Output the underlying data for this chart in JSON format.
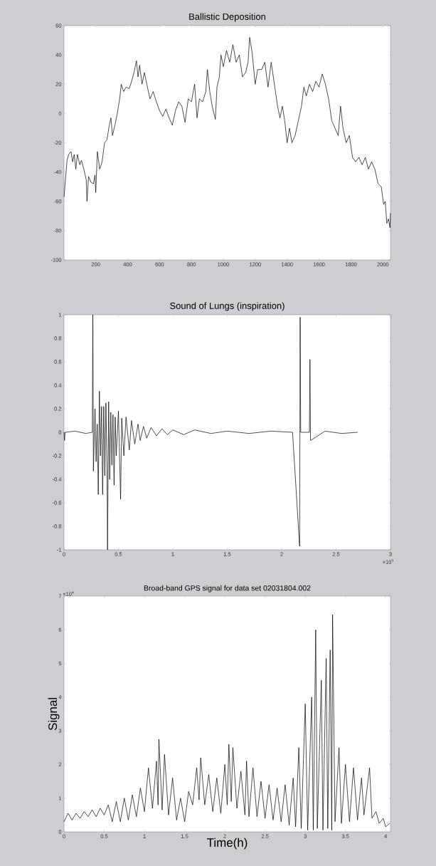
{
  "chart_data": [
    {
      "type": "line",
      "title": "Ballistic Deposition",
      "x": [
        1,
        10,
        20,
        30,
        45,
        55,
        65,
        75,
        85,
        100,
        110,
        125,
        140,
        145,
        155,
        170,
        185,
        195,
        200,
        210,
        225,
        240,
        255,
        270,
        285,
        295,
        305,
        320,
        335,
        350,
        360,
        375,
        390,
        410,
        425,
        440,
        455,
        465,
        475,
        490,
        505,
        520,
        540,
        560,
        580,
        600,
        620,
        640,
        660,
        680,
        700,
        720,
        740,
        760,
        780,
        800,
        820,
        835,
        850,
        870,
        890,
        900,
        915,
        930,
        950,
        960,
        975,
        985,
        1000,
        1020,
        1040,
        1060,
        1080,
        1100,
        1120,
        1140,
        1155,
        1165,
        1180,
        1200,
        1215,
        1240,
        1260,
        1280,
        1300,
        1320,
        1340,
        1355,
        1370,
        1385,
        1400,
        1415,
        1430,
        1450,
        1470,
        1490,
        1505,
        1520,
        1540,
        1560,
        1580,
        1600,
        1620,
        1640,
        1660,
        1680,
        1700,
        1720,
        1735,
        1750,
        1770,
        1790,
        1810,
        1830,
        1850,
        1870,
        1890,
        1910,
        1930,
        1950,
        1970,
        1990,
        2005,
        2015,
        2025,
        2035,
        2045,
        2048
      ],
      "series": [
        {
          "color": "#000000",
          "values": [
            -57,
            -45,
            -32,
            -28,
            -26,
            -33,
            -28,
            -38,
            -28,
            -35,
            -32,
            -38,
            -45,
            -60,
            -43,
            -47,
            -48,
            -42,
            -54,
            -26,
            -38,
            -33,
            -20,
            -18,
            -8,
            -3,
            -15,
            -8,
            0,
            10,
            20,
            15,
            18,
            17,
            22,
            28,
            36,
            25,
            33,
            20,
            28,
            20,
            10,
            15,
            8,
            2,
            -2,
            3,
            -3,
            -8,
            2,
            8,
            5,
            -6,
            10,
            8,
            20,
            -3,
            10,
            8,
            15,
            30,
            15,
            5,
            -4,
            18,
            25,
            40,
            32,
            43,
            35,
            47,
            35,
            40,
            25,
            28,
            35,
            52,
            42,
            20,
            30,
            30,
            35,
            18,
            35,
            20,
            5,
            -3,
            5,
            -5,
            -20,
            -10,
            -20,
            -15,
            -5,
            5,
            18,
            12,
            20,
            15,
            22,
            18,
            27,
            20,
            10,
            -5,
            -10,
            -15,
            5,
            -10,
            -20,
            -15,
            -30,
            -33,
            -30,
            -35,
            -30,
            -38,
            -33,
            -38,
            -48,
            -50,
            -62,
            -60,
            -75,
            -72,
            -78,
            -68
          ]
        }
      ],
      "xlim": [
        1,
        2048
      ],
      "ylim": [
        -100,
        60
      ],
      "xticks": [
        200,
        400,
        600,
        800,
        1000,
        1200,
        1400,
        1600,
        1800,
        2000
      ],
      "yticks": [
        -100,
        -80,
        -60,
        -40,
        -20,
        0,
        20,
        40,
        60
      ]
    },
    {
      "type": "line",
      "title": "Sound of Lungs (inspiration)",
      "x": [
        0,
        0.005,
        0.01,
        0.1,
        0.2,
        0.26,
        0.265,
        0.27,
        0.285,
        0.295,
        0.305,
        0.315,
        0.325,
        0.335,
        0.345,
        0.355,
        0.365,
        0.375,
        0.385,
        0.395,
        0.4,
        0.41,
        0.42,
        0.43,
        0.44,
        0.45,
        0.46,
        0.47,
        0.48,
        0.5,
        0.52,
        0.53,
        0.55,
        0.57,
        0.6,
        0.62,
        0.65,
        0.68,
        0.7,
        0.73,
        0.76,
        0.8,
        0.85,
        0.9,
        0.95,
        1.0,
        1.1,
        1.2,
        1.35,
        1.5,
        1.7,
        1.9,
        2.1,
        2.165,
        2.17,
        2.175,
        2.255,
        2.26,
        2.265,
        2.4,
        2.55,
        2.7
      ],
      "series": [
        {
          "color": "#000000",
          "values": [
            0,
            -0.07,
            0,
            0.01,
            -0.01,
            0,
            1,
            -0.33,
            0.2,
            -0.25,
            0.07,
            -0.53,
            0.35,
            -0.2,
            0.22,
            -0.53,
            0.22,
            -0.37,
            0.25,
            -0.3,
            -1,
            0.26,
            -0.4,
            0.17,
            -0.28,
            0.15,
            -0.45,
            0.13,
            -0.2,
            0.18,
            -0.57,
            0.12,
            -0.2,
            0.13,
            -0.15,
            0.1,
            -0.1,
            0.07,
            -0.07,
            0.05,
            -0.05,
            0.04,
            -0.03,
            0.03,
            -0.02,
            0.02,
            -0.02,
            0.02,
            -0.01,
            0.01,
            -0.01,
            0.01,
            0,
            -0.97,
            0.98,
            0,
            0,
            0.62,
            -0.07,
            0.01,
            -0.01,
            0
          ]
        }
      ],
      "xlim": [
        0,
        3
      ],
      "ylim": [
        -1,
        1
      ],
      "xticks": [
        0,
        0.5,
        1,
        1.5,
        2,
        2.5,
        3
      ],
      "yticks": [
        -1,
        -0.8,
        -0.6,
        -0.4,
        -0.2,
        0,
        0.2,
        0.4,
        0.6,
        0.8,
        1
      ],
      "annotations": [
        "×10$^{5}$"
      ]
    },
    {
      "type": "line",
      "title": "Broad-band GPS signal for data set 02031804.002",
      "xlabel": "Time(h)",
      "ylabel": "Signal",
      "x": [
        0,
        0.05,
        0.1,
        0.15,
        0.2,
        0.25,
        0.3,
        0.35,
        0.4,
        0.45,
        0.5,
        0.55,
        0.6,
        0.65,
        0.7,
        0.75,
        0.8,
        0.85,
        0.9,
        0.95,
        1.0,
        1.05,
        1.1,
        1.15,
        1.17,
        1.18,
        1.22,
        1.25,
        1.3,
        1.35,
        1.4,
        1.45,
        1.5,
        1.55,
        1.6,
        1.65,
        1.68,
        1.7,
        1.75,
        1.8,
        1.85,
        1.9,
        1.95,
        2.0,
        2.03,
        2.05,
        2.08,
        2.1,
        2.15,
        2.2,
        2.25,
        2.27,
        2.3,
        2.35,
        2.4,
        2.45,
        2.5,
        2.55,
        2.6,
        2.65,
        2.7,
        2.75,
        2.8,
        2.85,
        2.88,
        2.92,
        2.95,
        3.0,
        3.03,
        3.08,
        3.1,
        3.13,
        3.15,
        3.2,
        3.22,
        3.26,
        3.28,
        3.31,
        3.33,
        3.34,
        3.37,
        3.42,
        3.45,
        3.5,
        3.55,
        3.6,
        3.65,
        3.7,
        3.73,
        3.8,
        3.83,
        3.88,
        3.92,
        3.97,
        4.0,
        4.05
      ],
      "series": [
        {
          "color": "#000000",
          "values": [
            0.3,
            0.55,
            0.35,
            0.55,
            0.4,
            0.6,
            0.45,
            0.65,
            0.45,
            0.7,
            0.5,
            0.8,
            0.3,
            0.9,
            0.3,
            1.0,
            0.35,
            1.1,
            0.45,
            1.3,
            0.6,
            1.9,
            0.7,
            2.1,
            0.8,
            2.75,
            0.65,
            2.3,
            0.5,
            1.6,
            0.35,
            1.0,
            0.3,
            1.2,
            0.8,
            1.9,
            0.95,
            2.2,
            0.8,
            1.7,
            0.6,
            1.6,
            0.55,
            2.0,
            0.8,
            2.6,
            0.9,
            2.5,
            0.7,
            1.8,
            0.5,
            2.1,
            0.45,
            1.9,
            0.45,
            1.5,
            0.4,
            1.4,
            0.35,
            1.3,
            0.3,
            1.4,
            0.2,
            1.6,
            0.15,
            2.5,
            0.1,
            3.8,
            0.05,
            4.0,
            0.05,
            6.0,
            0.1,
            4.5,
            0.05,
            5.15,
            0.1,
            5.4,
            0.05,
            6.45,
            0.3,
            2.5,
            0.25,
            2.0,
            0.3,
            1.9,
            0.35,
            1.6,
            0.5,
            1.9,
            0.4,
            0.6,
            0.25,
            0.4,
            0.15,
            0.25
          ]
        }
      ],
      "xlim": [
        0,
        4.06
      ],
      "ylim": [
        0,
        7
      ],
      "xticks": [
        0,
        0.5,
        1,
        1.5,
        2,
        2.5,
        3,
        3.5,
        4
      ],
      "yticks": [
        0,
        1,
        2,
        3,
        4,
        5,
        6,
        7
      ],
      "annotations": [
        "×10$^{4}$"
      ]
    }
  ]
}
